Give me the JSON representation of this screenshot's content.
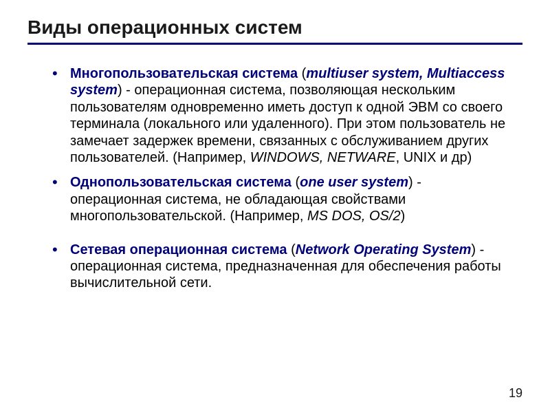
{
  "title": "Виды операционных систем",
  "page_number": "19",
  "colors": {
    "accent": "#00007a",
    "text": "#000000",
    "background": "#ffffff"
  },
  "typography": {
    "title_fontsize": 28,
    "body_fontsize": 20,
    "font_family": "Arial"
  },
  "bullets": [
    {
      "term_bold": "Многопользовательская система",
      "term_paren_open": " (",
      "term_italic": "multiuser system, Multiaccess system",
      "term_paren_close": ")",
      "body_pre": " - операционная система, позволяющая нескольким пользователям одновременно иметь доступ к одной ЭВМ со своего терминала (локального или удаленного). При этом пользователь не замечает задержек времени, связанных с обслуживанием других пользователей. (Например, ",
      "examples_italic": "WINDOWS, NETWARE",
      "body_mid": ", ",
      "examples_plain": "UNIX",
      "body_post": " и др)",
      "gap_before": false
    },
    {
      "term_bold": "Однопользовательская система",
      "term_paren_open": " (",
      "term_italic": "one user system",
      "term_paren_close": ")",
      "body_pre": " - операционная система, не обладающая свойствами многопользовательской. (Например, ",
      "examples_italic": "MS DOS, OS/2",
      "body_mid": "",
      "examples_plain": "",
      "body_post": ")",
      "gap_before": false
    },
    {
      "term_bold": "Сетевая операционная система",
      "term_paren_open": " (",
      "term_italic": "Network Operating System",
      "term_paren_close": ")",
      "body_pre": " - операционная система, предназначенная для обеспечения работы вычислительной сети.",
      "examples_italic": "",
      "body_mid": "",
      "examples_plain": "",
      "body_post": "",
      "gap_before": true
    }
  ]
}
